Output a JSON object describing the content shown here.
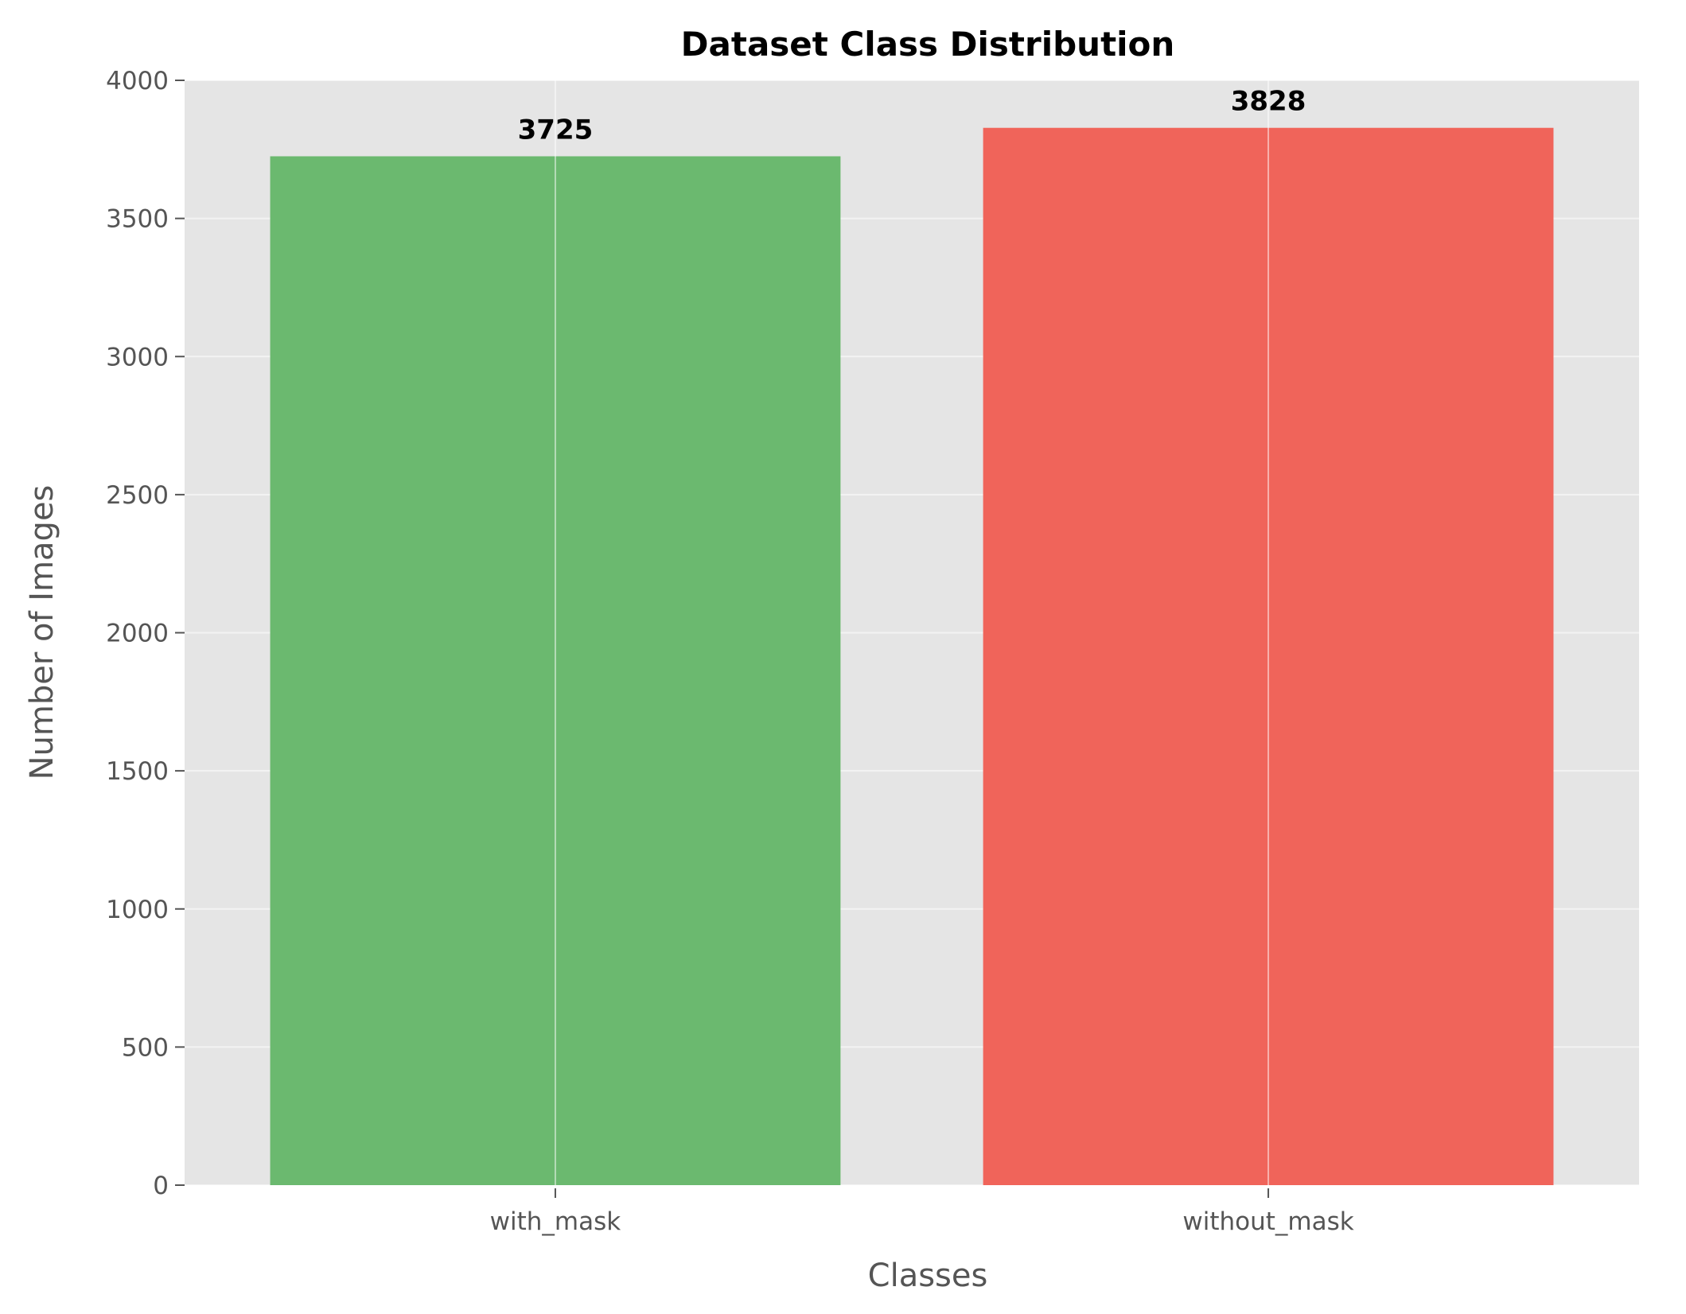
{
  "chart_data": {
    "type": "bar",
    "title": "Dataset Class Distribution",
    "xlabel": "Classes",
    "ylabel": "Number of Images",
    "categories": [
      "with_mask",
      "without_mask"
    ],
    "values": [
      3725,
      3828
    ],
    "value_labels": [
      "3725",
      "3828"
    ],
    "colors": [
      "#6bb96f",
      "#f0645a"
    ],
    "ylim": [
      0,
      4000
    ],
    "yticks": [
      0,
      500,
      1000,
      1500,
      2000,
      2500,
      3000,
      3500,
      4000
    ],
    "ytick_labels": [
      "0",
      "500",
      "1000",
      "1500",
      "2000",
      "2500",
      "3000",
      "3500",
      "4000"
    ],
    "grid": true,
    "background": "#e5e5e5"
  }
}
